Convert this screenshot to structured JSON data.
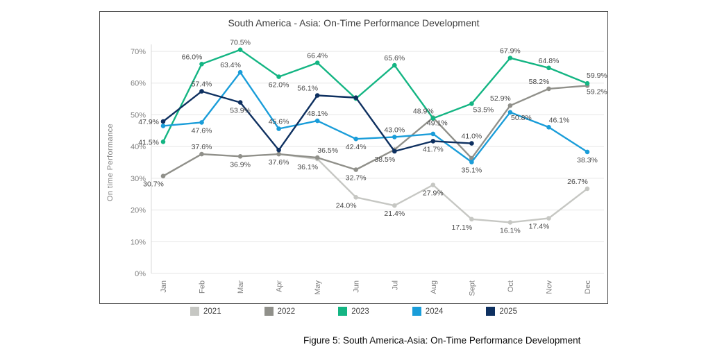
{
  "page": {
    "caption": "Figure 5: South America-Asia: On-Time Performance Development"
  },
  "chart_data": {
    "type": "line",
    "title": "South America - Asia: On-Time Performance Development",
    "xlabel": "",
    "ylabel": "On time Performance",
    "ylim": [
      0,
      75
    ],
    "yticks": [
      0,
      10,
      20,
      30,
      40,
      50,
      60,
      70
    ],
    "ytick_suffix": "%",
    "grid": true,
    "legend_position": "bottom",
    "categories": [
      "Jan",
      "Feb",
      "Mar",
      "Apr",
      "May",
      "Jun",
      "Jul",
      "Aug",
      "Sept",
      "Oct",
      "Nov",
      "Dec"
    ],
    "series": [
      {
        "name": "2021",
        "color": "#c6c7c3",
        "values": [
          null,
          null,
          null,
          37.6,
          36.1,
          24.0,
          21.4,
          27.9,
          17.1,
          16.1,
          17.4,
          26.7
        ],
        "labels": [
          "",
          "",
          "",
          "",
          "36.1%",
          "24.0%",
          "21.4%",
          "27.9%",
          "17.1%",
          "16.1%",
          "17.4%",
          "26.7%"
        ],
        "label_pos": [
          "",
          "",
          "",
          "",
          "bl",
          "bl",
          "b",
          "b",
          "bl",
          "b",
          "bl",
          "al"
        ]
      },
      {
        "name": "2022",
        "color": "#90908a",
        "values": [
          30.7,
          37.6,
          36.9,
          37.6,
          36.5,
          32.7,
          39.0,
          49.1,
          36.3,
          52.9,
          58.2,
          59.2
        ],
        "labels": [
          "30.7%",
          "37.6%",
          "36.9%",
          "37.6%",
          "36.5%",
          "32.7%",
          "",
          "49.1%",
          "",
          "52.9%",
          "58.2%",
          "59.2%"
        ],
        "label_pos": [
          "bl",
          "a",
          "b",
          "b",
          "ar",
          "b",
          "",
          [
            6,
            11,
            "middle"
          ],
          "",
          "al",
          "al",
          [
            -1,
            12,
            "start"
          ]
        ]
      },
      {
        "name": "2023",
        "color": "#14b583",
        "values": [
          41.5,
          66.0,
          70.5,
          62.0,
          66.4,
          55.1,
          65.6,
          48.9,
          53.5,
          67.9,
          64.8,
          59.9
        ],
        "labels": [
          "41.5%",
          "66.0%",
          "70.5%",
          "62.0%",
          "66.4%",
          "",
          "65.6%",
          "48.9%",
          "53.5%",
          "67.9%",
          "64.8%",
          "59.9%"
        ],
        "label_pos": [
          "l",
          "al",
          "a",
          "b",
          "a",
          "",
          "a",
          "al",
          [
            17,
            12,
            "middle"
          ],
          "a",
          "a",
          [
            -1,
            -8,
            "start"
          ]
        ]
      },
      {
        "name": "2024",
        "color": "#1a9dd9",
        "values": [
          46.5,
          47.6,
          63.4,
          45.6,
          48.1,
          42.4,
          43.0,
          44.0,
          35.1,
          50.8,
          46.1,
          38.3
        ],
        "labels": [
          "",
          "47.6%",
          "63.4%",
          "45.6%",
          "48.1%",
          "42.4%",
          "43.0%",
          "",
          "35.1%",
          "50.8%",
          "46.1%",
          "38.3%"
        ],
        "label_pos": [
          "",
          "b",
          "al",
          "a",
          "a",
          "b",
          "a",
          "",
          "b",
          [
            16,
            11,
            "middle"
          ],
          "ar",
          "b"
        ]
      },
      {
        "name": "2025",
        "color": "#0e3060",
        "values": [
          47.9,
          57.4,
          53.9,
          38.9,
          56.1,
          55.4,
          38.5,
          41.7,
          41.0,
          null,
          null,
          null
        ],
        "labels": [
          "47.9%",
          "57.4%",
          "53.9%",
          "",
          "56.1%",
          "",
          "38.5%",
          "41.7%",
          "41.0%",
          "",
          "",
          ""
        ],
        "label_pos": [
          "l",
          "a",
          "b",
          "",
          "al",
          "",
          "bl",
          "b",
          "a",
          "",
          "",
          ""
        ]
      }
    ],
    "style": {
      "grid_color": "#e6e6e6",
      "axis_line_color": "#d8d8d8",
      "tick_label_color": "#828282",
      "data_label_color": "#474747",
      "title_color": "#3b3b3b"
    }
  }
}
